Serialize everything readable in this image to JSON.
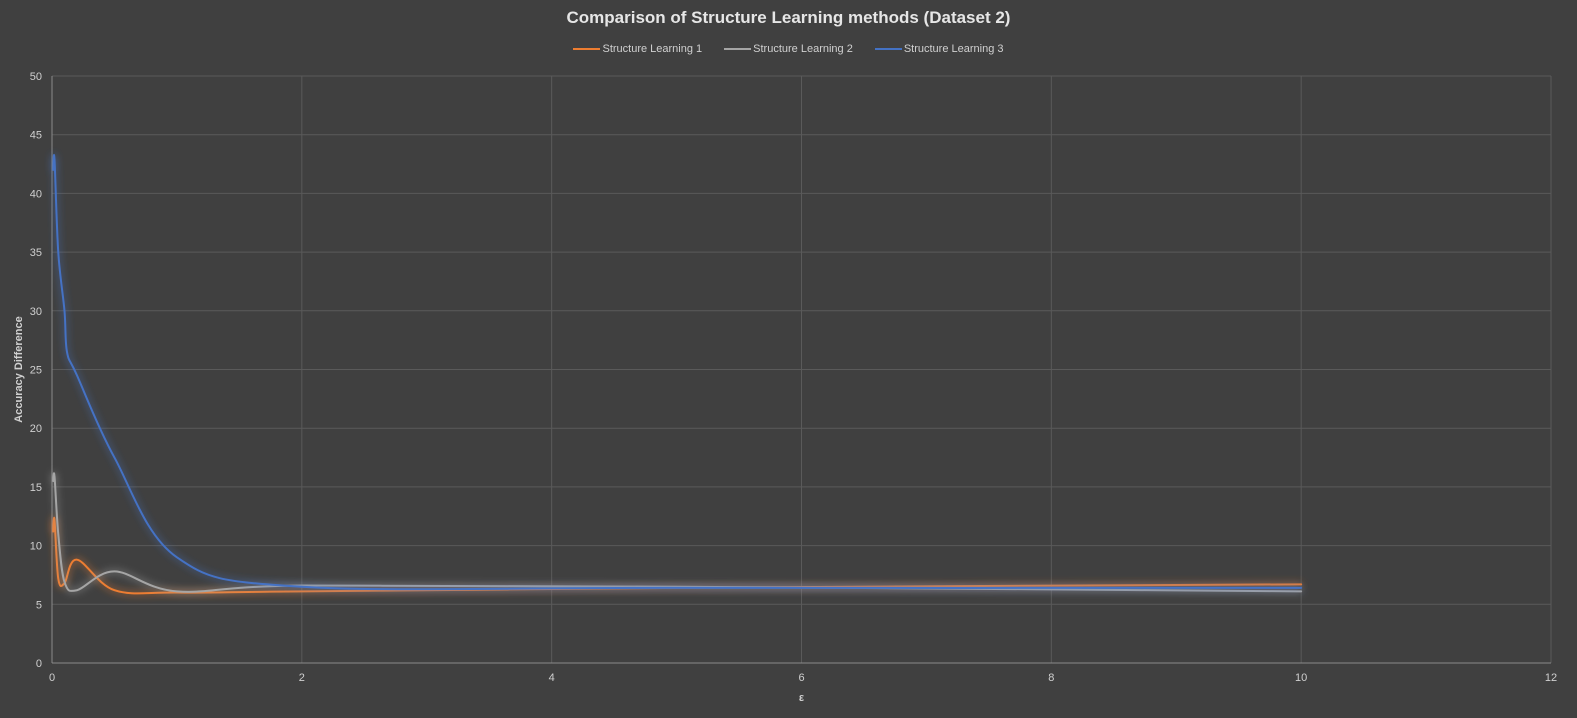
{
  "chart_data": {
    "type": "line",
    "title": "Comparison of Structure Learning methods (Dataset 2)",
    "xlabel": "ε",
    "ylabel": "Accuracy Difference",
    "xlim": [
      0,
      12
    ],
    "ylim": [
      0,
      50
    ],
    "x_ticks": [
      "0",
      "2",
      "4",
      "6",
      "8",
      "10",
      "12"
    ],
    "y_ticks": [
      "0",
      "5",
      "10",
      "15",
      "20",
      "25",
      "30",
      "35",
      "40",
      "45",
      "50"
    ],
    "grid": true,
    "legend_position": "top",
    "series": [
      {
        "name": "Structure Learning 1",
        "color": "#ed7d31",
        "x": [
          0.01,
          0.02,
          0.05,
          0.1,
          0.2,
          0.5,
          1,
          2,
          5,
          10
        ],
        "y": [
          11.2,
          12.2,
          7.2,
          6.8,
          8.8,
          6.2,
          6.0,
          6.1,
          6.4,
          6.7
        ]
      },
      {
        "name": "Structure Learning 2",
        "color": "#a5a5a5",
        "x": [
          0.01,
          0.02,
          0.05,
          0.1,
          0.2,
          0.5,
          1,
          2,
          5,
          10
        ],
        "y": [
          15.5,
          15.9,
          11.0,
          6.9,
          6.2,
          7.8,
          6.1,
          6.6,
          6.5,
          6.1
        ]
      },
      {
        "name": "Structure Learning 3",
        "color": "#4472c4",
        "x": [
          0.01,
          0.02,
          0.05,
          0.1,
          0.12,
          0.2,
          0.5,
          1,
          2,
          5,
          10
        ],
        "y": [
          42.0,
          42.9,
          35.0,
          30.0,
          26.5,
          24.5,
          17.5,
          9.0,
          6.5,
          6.4,
          6.4
        ]
      }
    ]
  }
}
